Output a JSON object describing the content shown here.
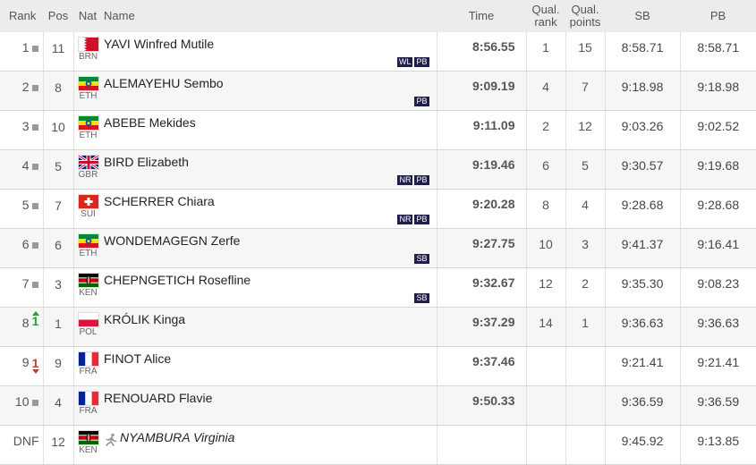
{
  "header": {
    "rank": "Rank",
    "pos": "Pos",
    "nat": "Nat",
    "name": "Name",
    "time": "Time",
    "qual_rank_l1": "Qual.",
    "qual_rank_l2": "rank",
    "qual_points_l1": "Qual.",
    "qual_points_l2": "points",
    "sb": "SB",
    "pb": "PB"
  },
  "rows": [
    {
      "rank": "1",
      "move": "same",
      "move_n": "",
      "pos": "11",
      "flag": "BRN",
      "nat": "BRN",
      "name": "YAVI Winfred Mutile",
      "status": "",
      "badges": [
        "WL",
        "PB"
      ],
      "time": "8:56.55",
      "qrank": "1",
      "qpoints": "15",
      "sb": "8:58.71",
      "pb": "8:58.71"
    },
    {
      "rank": "2",
      "move": "same",
      "move_n": "",
      "pos": "8",
      "flag": "ETH",
      "nat": "ETH",
      "name": "ALEMAYEHU Sembo",
      "status": "",
      "badges": [
        "PB"
      ],
      "time": "9:09.19",
      "qrank": "4",
      "qpoints": "7",
      "sb": "9:18.98",
      "pb": "9:18.98"
    },
    {
      "rank": "3",
      "move": "same",
      "move_n": "",
      "pos": "10",
      "flag": "ETH",
      "nat": "ETH",
      "name": "ABEBE Mekides",
      "status": "",
      "badges": [],
      "time": "9:11.09",
      "qrank": "2",
      "qpoints": "12",
      "sb": "9:03.26",
      "pb": "9:02.52"
    },
    {
      "rank": "4",
      "move": "same",
      "move_n": "",
      "pos": "5",
      "flag": "GBR",
      "nat": "GBR",
      "name": "BIRD Elizabeth",
      "status": "",
      "badges": [
        "NR",
        "PB"
      ],
      "time": "9:19.46",
      "qrank": "6",
      "qpoints": "5",
      "sb": "9:30.57",
      "pb": "9:19.68"
    },
    {
      "rank": "5",
      "move": "same",
      "move_n": "",
      "pos": "7",
      "flag": "SUI",
      "nat": "SUI",
      "name": "SCHERRER Chiara",
      "status": "",
      "badges": [
        "NR",
        "PB"
      ],
      "time": "9:20.28",
      "qrank": "8",
      "qpoints": "4",
      "sb": "9:28.68",
      "pb": "9:28.68"
    },
    {
      "rank": "6",
      "move": "same",
      "move_n": "",
      "pos": "6",
      "flag": "ETH",
      "nat": "ETH",
      "name": "WONDEMAGEGN Zerfe",
      "status": "",
      "badges": [
        "SB"
      ],
      "time": "9:27.75",
      "qrank": "10",
      "qpoints": "3",
      "sb": "9:41.37",
      "pb": "9:16.41"
    },
    {
      "rank": "7",
      "move": "same",
      "move_n": "",
      "pos": "3",
      "flag": "KEN",
      "nat": "KEN",
      "name": "CHEPNGETICH Rosefline",
      "status": "",
      "badges": [
        "SB"
      ],
      "time": "9:32.67",
      "qrank": "12",
      "qpoints": "2",
      "sb": "9:35.30",
      "pb": "9:08.23"
    },
    {
      "rank": "8",
      "move": "up",
      "move_n": "1",
      "pos": "1",
      "flag": "POL",
      "nat": "POL",
      "name": "KRÓLIK Kinga",
      "status": "",
      "badges": [],
      "time": "9:37.29",
      "qrank": "14",
      "qpoints": "1",
      "sb": "9:36.63",
      "pb": "9:36.63"
    },
    {
      "rank": "9",
      "move": "down",
      "move_n": "1",
      "pos": "9",
      "flag": "FRA",
      "nat": "FRA",
      "name": "FINOT Alice",
      "status": "",
      "badges": [],
      "time": "9:37.46",
      "qrank": "",
      "qpoints": "",
      "sb": "9:21.41",
      "pb": "9:21.41"
    },
    {
      "rank": "10",
      "move": "same",
      "move_n": "",
      "pos": "4",
      "flag": "FRA",
      "nat": "FRA",
      "name": "RENOUARD Flavie",
      "status": "",
      "badges": [],
      "time": "9:50.33",
      "qrank": "",
      "qpoints": "",
      "sb": "9:36.59",
      "pb": "9:36.59"
    },
    {
      "rank": "DNF",
      "move": "none",
      "move_n": "",
      "pos": "12",
      "flag": "KEN",
      "nat": "KEN",
      "name": "NYAMBURA Virginia",
      "status": "running-icon",
      "badges": [],
      "time": "",
      "qrank": "",
      "qpoints": "",
      "sb": "9:45.92",
      "pb": "9:13.85"
    }
  ],
  "colors": {
    "header_bg": "#ececec",
    "badge_bg": "#1f1f4a",
    "up_arrow": "#2e9a3b",
    "down_arrow": "#c73a2e"
  }
}
